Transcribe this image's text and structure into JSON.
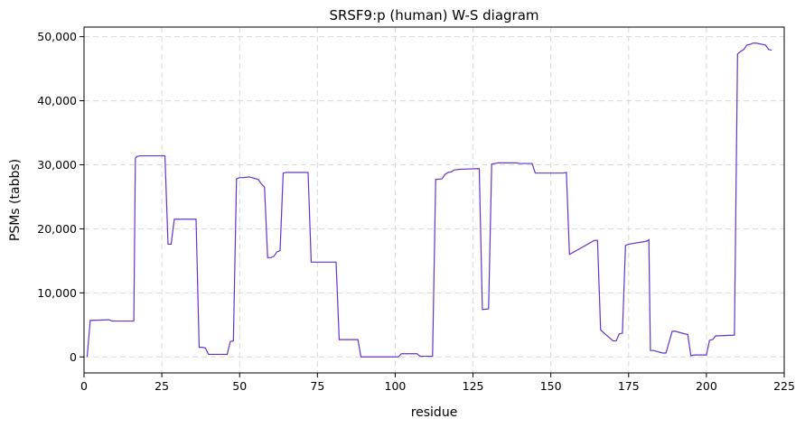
{
  "chart_data": {
    "type": "line",
    "title": "SRSF9:p (human) W-S diagram",
    "xlabel": "residue",
    "ylabel": "PSMs (tabbs)",
    "xlim": [
      0,
      225
    ],
    "ylim": [
      -2500,
      51500
    ],
    "xticks": [
      0,
      25,
      50,
      75,
      100,
      125,
      150,
      175,
      200,
      225
    ],
    "xtick_labels": [
      "0",
      "25",
      "50",
      "75",
      "100",
      "125",
      "150",
      "175",
      "200",
      "225"
    ],
    "yticks": [
      0,
      10000,
      20000,
      30000,
      40000,
      50000
    ],
    "ytick_labels": [
      "0",
      "10,000",
      "20,000",
      "30,000",
      "40,000",
      "50,000"
    ],
    "grid": true,
    "line_color": "#6633cc",
    "series": [
      {
        "x": [
          1,
          2,
          8,
          9,
          16,
          16.5,
          17,
          18,
          26,
          27,
          28,
          29,
          36,
          37,
          38,
          39,
          40,
          46,
          47,
          48,
          49,
          50,
          51,
          53,
          54,
          56,
          57,
          58,
          59,
          60,
          61,
          62,
          63,
          64,
          65,
          68,
          72,
          73,
          81,
          82,
          88,
          89,
          101,
          102,
          107,
          108,
          112,
          113,
          115,
          116,
          117,
          118,
          119,
          121,
          127,
          128,
          130,
          131,
          132,
          133,
          134,
          139,
          140,
          144,
          145,
          154,
          155,
          156,
          164,
          165,
          166,
          170,
          171,
          172,
          173,
          174,
          175,
          180,
          181,
          181.5,
          182,
          183,
          186,
          187,
          189,
          190,
          193,
          194,
          195,
          196,
          200,
          201,
          202,
          203,
          204,
          209,
          210,
          211,
          212,
          213,
          214,
          215,
          216,
          219,
          220,
          221
        ],
        "values": [
          0,
          5700,
          5800,
          5600,
          5600,
          31000,
          31300,
          31400,
          31400,
          17600,
          17600,
          21500,
          21500,
          1500,
          1500,
          1400,
          400,
          400,
          2400,
          2500,
          27800,
          28000,
          28000,
          28100,
          28000,
          27700,
          27000,
          26500,
          15500,
          15500,
          15700,
          16400,
          16600,
          28700,
          28800,
          28800,
          28800,
          14800,
          14800,
          2700,
          2700,
          0,
          0,
          500,
          500,
          100,
          100,
          27700,
          27800,
          28500,
          28800,
          28900,
          29200,
          29300,
          29400,
          7400,
          7500,
          30100,
          30200,
          30300,
          30300,
          30300,
          30200,
          30200,
          28700,
          28700,
          28800,
          16000,
          18200,
          18200,
          4200,
          2500,
          2500,
          3600,
          3700,
          17400,
          17600,
          18000,
          18100,
          18300,
          1000,
          1000,
          600,
          600,
          4000,
          4000,
          3600,
          3500,
          200,
          300,
          300,
          2600,
          2700,
          3300,
          3300,
          3400,
          47300,
          47700,
          48000,
          48700,
          48800,
          49000,
          49000,
          48700,
          48000,
          47900
        ]
      }
    ]
  }
}
